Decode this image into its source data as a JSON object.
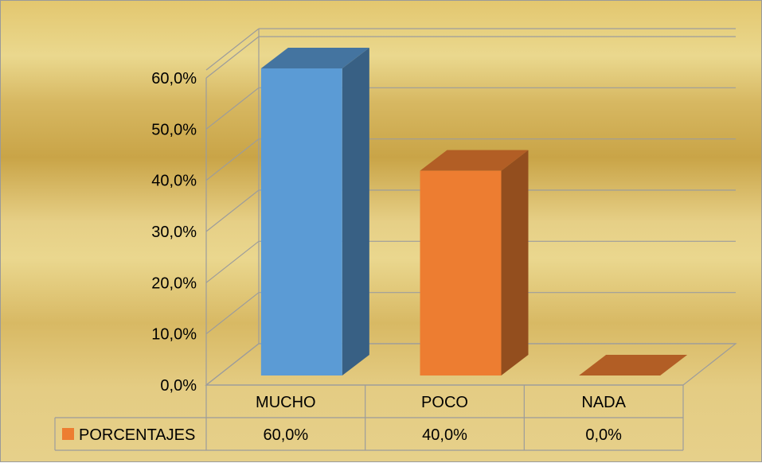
{
  "chart_data": {
    "type": "bar",
    "categories": [
      "MUCHO",
      "POCO",
      "NADA"
    ],
    "series": [
      {
        "name": "PORCENTAJES",
        "values": [
          60.0,
          40.0,
          0.0
        ],
        "value_labels": [
          "60,0%",
          "40,0%",
          "0,0%"
        ]
      }
    ],
    "bar_colors": [
      "#5b9bd5",
      "#ed7d31",
      "#ed7d31"
    ],
    "legend_color": "#ed7d31",
    "y_tick_labels": [
      "0,0%",
      "10,0%",
      "20,0%",
      "30,0%",
      "40,0%",
      "50,0%",
      "60,0%"
    ],
    "ylim": [
      0,
      60
    ],
    "three_d": true,
    "grid": true,
    "data_table": true,
    "title": "",
    "xlabel": "",
    "ylabel": ""
  }
}
